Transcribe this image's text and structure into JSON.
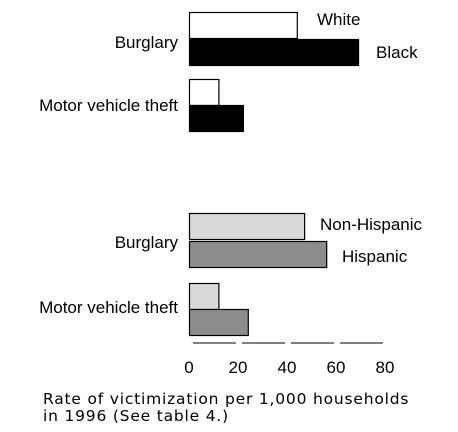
{
  "chart_data": [
    {
      "type": "bar",
      "orientation": "horizontal",
      "categories": [
        "Burglary",
        "Motor vehicle theft"
      ],
      "series": [
        {
          "name": "White",
          "values": [
            44,
            12
          ],
          "color": "#ffffff"
        },
        {
          "name": "Black",
          "values": [
            69,
            22
          ],
          "color": "#000000"
        }
      ],
      "legend": "inline-right"
    },
    {
      "type": "bar",
      "orientation": "horizontal",
      "categories": [
        "Burglary",
        "Motor vehicle theft"
      ],
      "series": [
        {
          "name": "Non-Hispanic",
          "values": [
            47,
            12
          ],
          "color": "#d9d9d9"
        },
        {
          "name": "Hispanic",
          "values": [
            56,
            24
          ],
          "color": "#8c8c8c"
        }
      ],
      "legend": "inline-right"
    }
  ],
  "axis": {
    "ticks": [
      "0",
      "20",
      "40",
      "60",
      "80"
    ],
    "xlim": [
      0,
      80
    ]
  },
  "footnote": {
    "line1": "Rate of victimization per 1,000 households",
    "line2": "in 1996  (See table 4.)"
  }
}
